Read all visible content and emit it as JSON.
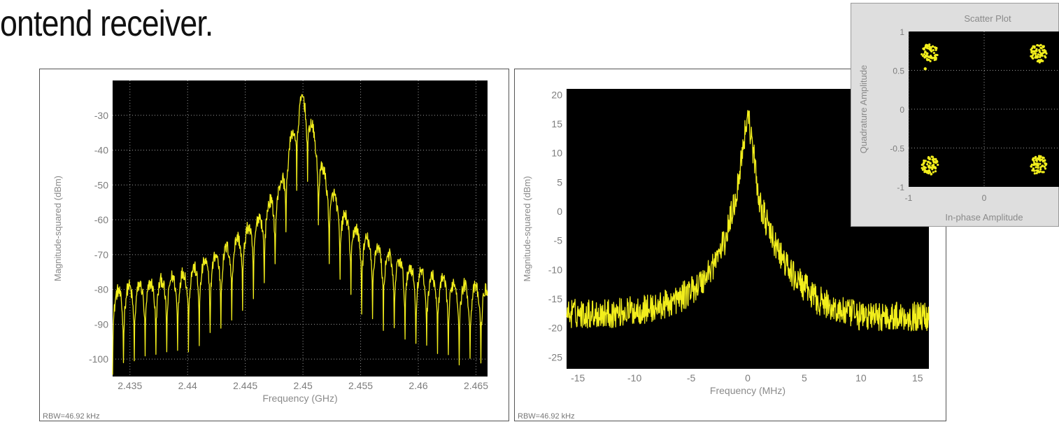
{
  "headline": "ontend receiver.",
  "colors": {
    "trace": "#f2ee1c",
    "plot_bg": "#000000",
    "grid": "#9a9a9a"
  },
  "chart_data": [
    {
      "type": "line",
      "title": "",
      "xlabel": "Frequency (GHz)",
      "ylabel": "Magnitude-squared (dBm)",
      "xlim": [
        2.4335,
        2.466
      ],
      "ylim": [
        -105,
        -20
      ],
      "xticks": [
        "2.435",
        "2.44",
        "2.445",
        "2.45",
        "2.455",
        "2.46",
        "2.465"
      ],
      "yticks": [
        "-30",
        "-40",
        "-50",
        "-60",
        "-70",
        "-80",
        "-90",
        "-100"
      ],
      "grid": true,
      "footer": "RBW=46.92 kHz",
      "series": [
        {
          "x": [
            2.4335,
            2.435,
            2.437,
            2.439,
            2.441,
            2.443,
            2.445,
            2.4465,
            2.448,
            2.449,
            2.4495,
            2.45,
            2.4505,
            2.451,
            2.452,
            2.4535,
            2.455,
            2.457,
            2.459,
            2.461,
            2.463,
            2.466
          ],
          "values": [
            -81,
            -79,
            -78,
            -76,
            -73,
            -69,
            -63,
            -58,
            -50,
            -36,
            -28,
            -24,
            -28,
            -36,
            -48,
            -58,
            -64,
            -69,
            -73,
            -76,
            -78,
            -80
          ]
        }
      ]
    },
    {
      "type": "line",
      "title": "",
      "xlabel": "Frequency (MHz)",
      "ylabel": "Magnitude-squared (dBm)",
      "xlim": [
        -16,
        16
      ],
      "ylim": [
        -27,
        21
      ],
      "xticks": [
        "-15",
        "-10",
        "-5",
        "0",
        "5",
        "10",
        "15"
      ],
      "yticks": [
        "20",
        "15",
        "10",
        "5",
        "0",
        "-5",
        "-10",
        "-15",
        "-20",
        "-25"
      ],
      "grid": false,
      "footer": "RBW=46.92 kHz",
      "series": [
        {
          "x": [
            -16,
            -14,
            -12,
            -10,
            -8,
            -6,
            -4,
            -3,
            -2,
            -1,
            -0.5,
            0,
            0.5,
            1,
            2,
            3,
            4,
            6,
            8,
            10,
            12,
            14,
            16
          ],
          "values": [
            -17.5,
            -17.5,
            -17.5,
            -17,
            -16.5,
            -15,
            -12,
            -9,
            -5,
            3,
            10,
            17,
            10,
            2,
            -4,
            -8,
            -11,
            -15,
            -17,
            -18,
            -18,
            -18,
            -18
          ]
        }
      ]
    },
    {
      "type": "scatter",
      "title": "Scatter Plot",
      "xlabel": "In-phase Amplitude",
      "ylabel": "Quadrature Amplitude",
      "xlim": [
        -1,
        1
      ],
      "ylim": [
        -1,
        1
      ],
      "xticks": [
        "-1",
        "0"
      ],
      "yticks": [
        "1",
        "0.5",
        "0",
        "-0.5",
        "-1"
      ],
      "grid": true,
      "clusters": [
        {
          "x": -0.72,
          "y": 0.72
        },
        {
          "x": 0.72,
          "y": 0.72
        },
        {
          "x": -0.72,
          "y": -0.72
        },
        {
          "x": 0.72,
          "y": -0.72
        }
      ],
      "outliers": [
        {
          "x": -0.78,
          "y": 0.52
        }
      ]
    }
  ]
}
